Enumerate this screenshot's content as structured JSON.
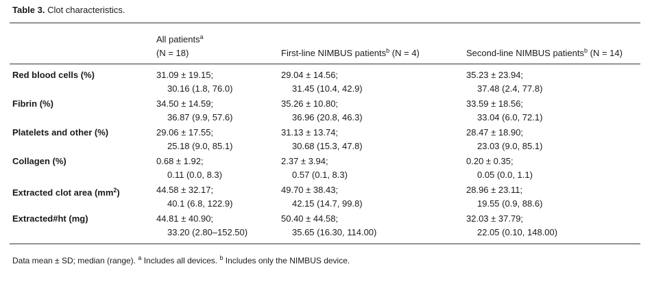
{
  "caption": {
    "label": "Table 3.",
    "text": "Clot characteristics."
  },
  "table": {
    "columns": [
      {
        "title": "All patients",
        "note": "a",
        "n": "(N = 18)"
      },
      {
        "title": "First-line NIMBUS patients",
        "note": "b",
        "n": "(N = 4)"
      },
      {
        "title": "Second-line NIMBUS patients",
        "note": "b",
        "n": "(N = 14)"
      }
    ],
    "rows": [
      {
        "label": "Red blood cells (%)",
        "cells": [
          [
            "31.09 ± 19.15;",
            "30.16 (1.8, 76.0)"
          ],
          [
            "29.04 ± 14.56;",
            "31.45 (10.4, 42.9)"
          ],
          [
            "35.23 ± 23.94;",
            "37.48 (2.4, 77.8)"
          ]
        ]
      },
      {
        "label": "Fibrin (%)",
        "cells": [
          [
            "34.50 ± 14.59;",
            "36.87 (9.9, 57.6)"
          ],
          [
            "35.26 ± 10.80;",
            "36.96 (20.8, 46.3)"
          ],
          [
            "33.59 ± 18.56;",
            "33.04 (6.0, 72.1)"
          ]
        ]
      },
      {
        "label": "Platelets and other (%)",
        "cells": [
          [
            "29.06 ± 17.55;",
            "25.18 (9.0, 85.1)"
          ],
          [
            "31.13 ± 13.74;",
            "30.68 (15.3, 47.8)"
          ],
          [
            "28.47 ± 18.90;",
            "23.03 (9.0, 85.1)"
          ]
        ]
      },
      {
        "label": "Collagen (%)",
        "cells": [
          [
            "0.68 ± 1.92;",
            "0.11 (0.0, 8.3)"
          ],
          [
            "2.37 ± 3.94;",
            "0.57 (0.1, 8.3)"
          ],
          [
            "0.20 ± 0.35;",
            "0.05 (0.0, 1.1)"
          ]
        ]
      },
      {
        "label": "Extracted clot area (mm",
        "label_sup": "2",
        "label_end": ")",
        "cells": [
          [
            "44.58 ± 32.17;",
            "40.1 (6.8, 122.9)"
          ],
          [
            "49.70 ± 38.43;",
            "42.15 (14.7, 99.8)"
          ],
          [
            "28.96 ± 23.11;",
            "19.55 (0.9, 88.6)"
          ]
        ]
      },
      {
        "label": "Extracted#ht (mg)",
        "cells": [
          [
            "44.81 ± 40.90;",
            "33.20 (2.80–152.50)"
          ],
          [
            "50.40 ± 44.58;",
            "35.65 (16.30, 114.00)"
          ],
          [
            "32.03 ± 37.79;",
            "22.05 (0.10, 148.00)"
          ]
        ]
      }
    ]
  },
  "footnote": {
    "text": "Data mean ± SD; median (range).",
    "note_a": "a",
    "note_a_text": "Includes all devices.",
    "note_b": "b",
    "note_b_text": "Includes only the NIMBUS device."
  }
}
